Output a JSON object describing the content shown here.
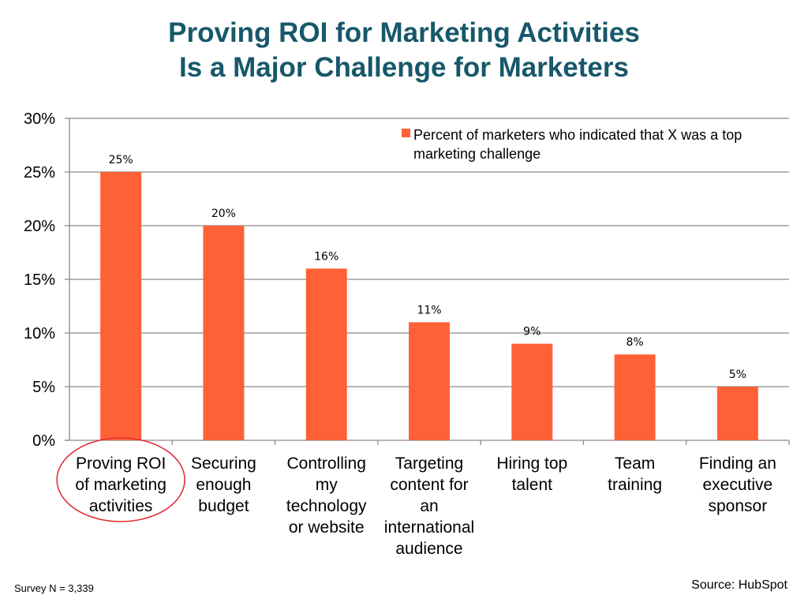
{
  "slide": {
    "title_line1": "Proving ROI for Marketing Activities",
    "title_line2": "Is a Major Challenge for Marketers",
    "footer_left": "Survey N = 3,339",
    "footer_right": "Source: HubSpot"
  },
  "chart_data": {
    "type": "bar",
    "categories": [
      [
        "Proving ROI",
        "of marketing",
        "activities"
      ],
      [
        "Securing",
        "enough",
        "budget"
      ],
      [
        "Controlling",
        "my",
        "technology",
        "or website"
      ],
      [
        "Targeting",
        "content for",
        "an",
        "international",
        "audience"
      ],
      [
        "Hiring top",
        "talent"
      ],
      [
        "Team",
        "training"
      ],
      [
        "Finding an",
        "executive",
        "sponsor"
      ]
    ],
    "series": [
      {
        "name": "Percent of marketers who indicated that X was a top marketing challenge",
        "legend_lines": [
          "Percent of marketers who indicated that X was a top",
          "marketing challenge"
        ],
        "values": [
          25,
          20,
          16,
          11,
          9,
          8,
          5
        ],
        "data_labels": [
          "25%",
          "20%",
          "16%",
          "11%",
          "9%",
          "8%",
          "5%"
        ]
      }
    ],
    "ylim": [
      0,
      30
    ],
    "yticks": [
      "0%",
      "5%",
      "10%",
      "15%",
      "20%",
      "25%",
      "30%"
    ],
    "grid": true,
    "legend_position": "top-right",
    "highlighted_category_index": 0,
    "colors": {
      "bar": "#ff6136",
      "title": "#17586a",
      "grid": "#8a8a8a",
      "highlight": "#e0303a"
    }
  }
}
